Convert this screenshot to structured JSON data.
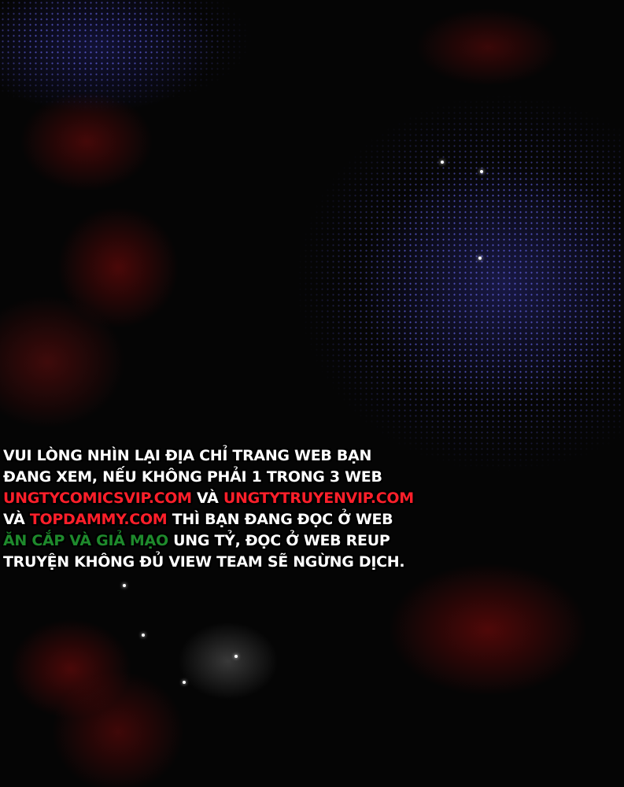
{
  "notice": {
    "line1": "VUI LÒNG NHÌN LẠI ĐỊA CHỈ TRANG WEB BẠN",
    "line2": "ĐANG XEM, NẾU KHÔNG PHẢI 1 TRONG 3 WEB",
    "site1": "UNGTYCOMICSVIP.COM",
    "and1": " VÀ ",
    "site2": "UNGTYTRUYENVIP.COM",
    "and2": "VÀ ",
    "site3": "TOPDAMMY.COM",
    "line4_rest": " THÌ BẠN ĐANG ĐỌC Ở WEB",
    "warning": "ĂN CẮP VÀ GIẢ MẠO",
    "line5_rest": " UNG TỶ, ĐỌC Ở WEB REUP",
    "line6": "TRUYỆN KHÔNG ĐỦ VIEW TEAM SẼ NGỪNG DỊCH."
  },
  "colors": {
    "site_link": "#ff1f2a",
    "warning": "#1e8a2c",
    "background": "#050505"
  }
}
